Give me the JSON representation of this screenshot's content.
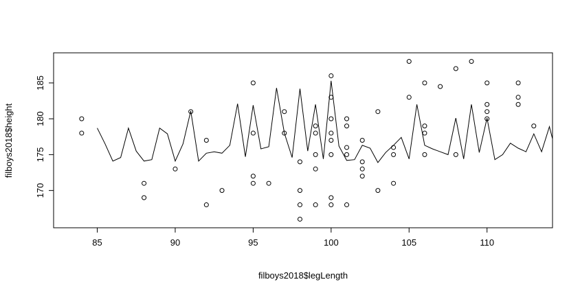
{
  "chart_data": {
    "type": "scatter",
    "title": "",
    "xlabel": "filboys2018$legLength",
    "ylabel": "filboys2018$height",
    "xlim": [
      82.2,
      114.2
    ],
    "ylim": [
      164.8,
      189.2
    ],
    "x_ticks": [
      85,
      90,
      95,
      100,
      105,
      110
    ],
    "y_ticks": [
      170,
      175,
      180,
      185
    ],
    "grid": false,
    "legend": "none",
    "colors": {
      "points": "#000000",
      "line": "#000000",
      "frame": "#000000"
    },
    "series": [
      {
        "type": "scatter",
        "points": [
          [
            84,
            180
          ],
          [
            84,
            178
          ],
          [
            88,
            171
          ],
          [
            88,
            169
          ],
          [
            90,
            173
          ],
          [
            91,
            181
          ],
          [
            92,
            177
          ],
          [
            92,
            168
          ],
          [
            93,
            170
          ],
          [
            95,
            185
          ],
          [
            95,
            178
          ],
          [
            95,
            172
          ],
          [
            95,
            171
          ],
          [
            96,
            171
          ],
          [
            97,
            181
          ],
          [
            97,
            178
          ],
          [
            98,
            174
          ],
          [
            98,
            170
          ],
          [
            98,
            168
          ],
          [
            98,
            166
          ],
          [
            99,
            179
          ],
          [
            99,
            178
          ],
          [
            99,
            175
          ],
          [
            99,
            173
          ],
          [
            99,
            168
          ],
          [
            100,
            186
          ],
          [
            100,
            183
          ],
          [
            100,
            180
          ],
          [
            100,
            178
          ],
          [
            100,
            177
          ],
          [
            100,
            175
          ],
          [
            100,
            169
          ],
          [
            100,
            168
          ],
          [
            101,
            180
          ],
          [
            101,
            179
          ],
          [
            101,
            176
          ],
          [
            101,
            175
          ],
          [
            101,
            168
          ],
          [
            102,
            177
          ],
          [
            102,
            174
          ],
          [
            102,
            173
          ],
          [
            102,
            172
          ],
          [
            103,
            181
          ],
          [
            103,
            170
          ],
          [
            104,
            176
          ],
          [
            104,
            175
          ],
          [
            104,
            171
          ],
          [
            105,
            188
          ],
          [
            105,
            183
          ],
          [
            106,
            185
          ],
          [
            106,
            179
          ],
          [
            106,
            178
          ],
          [
            106,
            175
          ],
          [
            107,
            184.5
          ],
          [
            108,
            187
          ],
          [
            108,
            175
          ],
          [
            109,
            188
          ],
          [
            110,
            185
          ],
          [
            110,
            182
          ],
          [
            110,
            181
          ],
          [
            110,
            180
          ],
          [
            112,
            185
          ],
          [
            112,
            183
          ],
          [
            112,
            182
          ],
          [
            113,
            179
          ]
        ]
      },
      {
        "type": "line",
        "points": [
          [
            85,
            178.7
          ],
          [
            85.5,
            176.5
          ],
          [
            86,
            174.1
          ],
          [
            86.5,
            174.6
          ],
          [
            87,
            178.7
          ],
          [
            87.5,
            175.5
          ],
          [
            88,
            174.1
          ],
          [
            88.5,
            174.3
          ],
          [
            89,
            178.7
          ],
          [
            89.5,
            177.9
          ],
          [
            90,
            174.1
          ],
          [
            90.5,
            176.5
          ],
          [
            91,
            181.1
          ],
          [
            91.5,
            174.1
          ],
          [
            92,
            175.2
          ],
          [
            92.5,
            175.4
          ],
          [
            93,
            175.2
          ],
          [
            93.5,
            176.3
          ],
          [
            94,
            182.1
          ],
          [
            94.5,
            174.7
          ],
          [
            95,
            181.9
          ],
          [
            95.5,
            175.8
          ],
          [
            96,
            176.1
          ],
          [
            96.5,
            184.3
          ],
          [
            97,
            178
          ],
          [
            97.5,
            174.6
          ],
          [
            98,
            184.2
          ],
          [
            98.5,
            175.5
          ],
          [
            99,
            182
          ],
          [
            99.5,
            174.4
          ],
          [
            100,
            185.3
          ],
          [
            100.5,
            176.2
          ],
          [
            101,
            174.2
          ],
          [
            101.5,
            174.3
          ],
          [
            102,
            176.3
          ],
          [
            102.5,
            175.9
          ],
          [
            103,
            173.9
          ],
          [
            103.5,
            175.3
          ],
          [
            104,
            176.3
          ],
          [
            104.5,
            177.4
          ],
          [
            105,
            174.4
          ],
          [
            105.5,
            182
          ],
          [
            106,
            176.3
          ],
          [
            106.5,
            175.8
          ],
          [
            107,
            175.4
          ],
          [
            107.5,
            175
          ],
          [
            108,
            180.1
          ],
          [
            108.5,
            174.4
          ],
          [
            109,
            182
          ],
          [
            109.5,
            175.3
          ],
          [
            110,
            180.1
          ],
          [
            110.5,
            174.3
          ],
          [
            111,
            175
          ],
          [
            111.5,
            176.6
          ],
          [
            112,
            175.9
          ],
          [
            112.5,
            175.4
          ],
          [
            113,
            177.9
          ],
          [
            113.5,
            175.4
          ],
          [
            114,
            178.9
          ],
          [
            114.2,
            177.2
          ],
          [
            114.2,
            174.6
          ]
        ]
      }
    ]
  }
}
